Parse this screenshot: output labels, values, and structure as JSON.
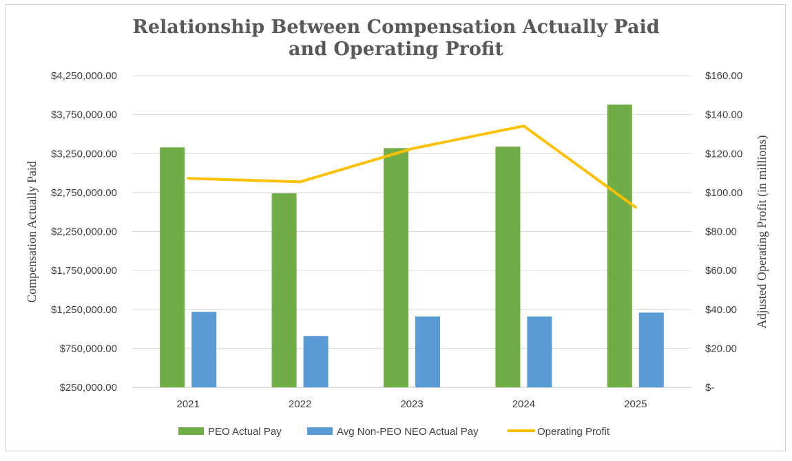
{
  "chart_data": {
    "type": "bar",
    "title_lines": [
      "Relationship Between Compensation Actually Paid",
      "and Operating Profit"
    ],
    "categories": [
      "2021",
      "2022",
      "2023",
      "2024",
      "2025"
    ],
    "series": [
      {
        "name": "PEO Actual Pay",
        "axis": "left",
        "kind": "bar",
        "color": "#70ad47",
        "values": [
          3330000,
          2740000,
          3320000,
          3340000,
          3880000
        ]
      },
      {
        "name": "Avg Non-PEO NEO Actual Pay",
        "axis": "left",
        "kind": "bar",
        "color": "#5b9bd5",
        "values": [
          1220000,
          910000,
          1160000,
          1160000,
          1210000
        ]
      },
      {
        "name": "Operating Profit",
        "axis": "right",
        "kind": "line",
        "color": "#ffc000",
        "values": [
          107.3,
          105.5,
          122.5,
          134.2,
          92.5
        ]
      }
    ],
    "ylabel": "Compensation Actually Paid",
    "y2label": "Adjusted Operating Profit (in millions)",
    "ylim": [
      250000,
      4250000
    ],
    "y2lim": [
      0,
      160
    ],
    "yticks": [
      {
        "value": 4250000,
        "label": "$4,250,000.00"
      },
      {
        "value": 3750000,
        "label": "$3,750,000.00"
      },
      {
        "value": 3250000,
        "label": "$3,250,000.00"
      },
      {
        "value": 2750000,
        "label": "$2,750,000.00"
      },
      {
        "value": 2250000,
        "label": "$2,250,000.00"
      },
      {
        "value": 1750000,
        "label": "$1,750,000.00"
      },
      {
        "value": 1250000,
        "label": "$1,250,000.00"
      },
      {
        "value": 750000,
        "label": "$750,000.00"
      },
      {
        "value": 250000,
        "label": "$250,000.00"
      }
    ],
    "y2ticks": [
      {
        "value": 160,
        "label": "$160.00"
      },
      {
        "value": 140,
        "label": "$140.00"
      },
      {
        "value": 120,
        "label": "$120.00"
      },
      {
        "value": 100,
        "label": "$100.00"
      },
      {
        "value": 80,
        "label": "$80.00"
      },
      {
        "value": 60,
        "label": "$60.00"
      },
      {
        "value": 40,
        "label": "$40.00"
      },
      {
        "value": 20,
        "label": "$20.00"
      },
      {
        "value": 0,
        "label": "$-"
      }
    ],
    "grid": true,
    "legend_position": "bottom-center"
  }
}
